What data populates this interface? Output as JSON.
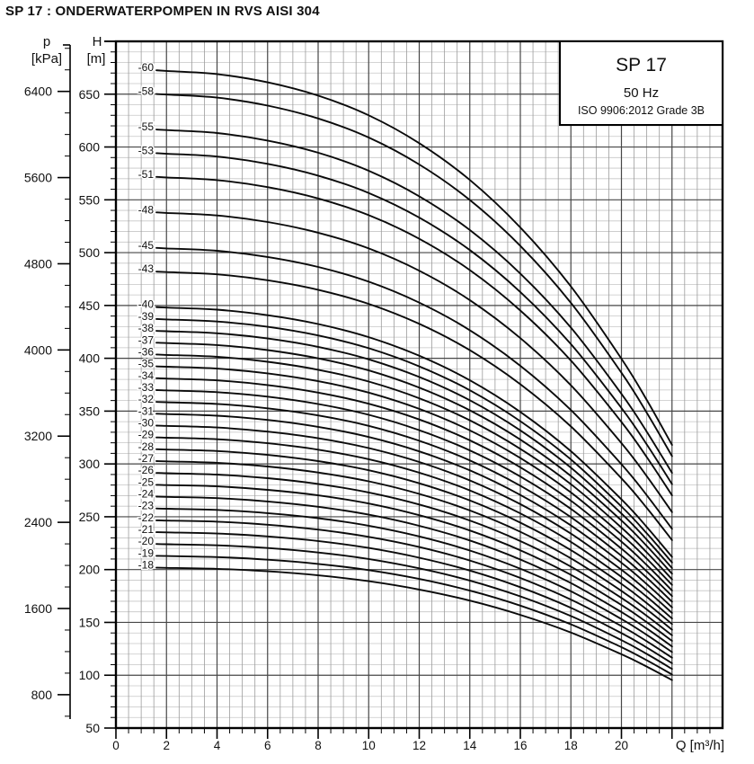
{
  "title": "SP 17 : ONDERWATERPOMPEN IN RVS AISI 304",
  "legend": {
    "model": "SP 17",
    "frequency": "50 Hz",
    "standard": "ISO 9906:2012 Grade 3B"
  },
  "axes": {
    "pressure": {
      "name": "p",
      "unit": "[kPa]",
      "major_ticks": [
        800,
        1600,
        2400,
        3200,
        4000,
        4800,
        5600,
        6400
      ],
      "minor_step": 200,
      "minor_range": [
        600,
        6800
      ],
      "kpa_per_m": 9.80665
    },
    "head": {
      "name": "H",
      "unit": "[m]",
      "major_ticks": [
        50,
        100,
        150,
        200,
        250,
        300,
        350,
        400,
        450,
        500,
        550,
        600,
        650
      ],
      "minor_step": 10,
      "range": [
        50,
        700
      ]
    },
    "flow": {
      "label": "Q [m³/h]",
      "major_ticks": [
        0,
        2,
        4,
        6,
        8,
        10,
        12,
        14,
        16,
        18,
        20
      ],
      "unlabeled_major_ticks": [
        22
      ],
      "minor_step": 0.5,
      "range": [
        0,
        24
      ]
    }
  },
  "chart_data": {
    "type": "line",
    "xlabel": "Q [m³/h]",
    "ylabel": "H [m]",
    "y2label": "p [kPa]",
    "xlim": [
      0,
      24
    ],
    "ylim": [
      50,
      700
    ],
    "grid": true,
    "x": [
      1.6,
      2,
      4,
      6,
      8,
      10,
      12,
      14,
      16,
      18,
      20,
      21,
      22
    ],
    "per_stage_head_m": [
      11.21,
      11.2,
      11.15,
      11.02,
      10.81,
      10.5,
      10.06,
      9.48,
      8.73,
      7.8,
      6.66,
      6.01,
      5.3
    ],
    "head_equals": "stages × per_stage_head_m",
    "series": [
      {
        "label": "-60",
        "stages": 60
      },
      {
        "label": "-58",
        "stages": 58
      },
      {
        "label": "-55",
        "stages": 55
      },
      {
        "label": "-53",
        "stages": 53
      },
      {
        "label": "-51",
        "stages": 51
      },
      {
        "label": "-48",
        "stages": 48
      },
      {
        "label": "-45",
        "stages": 45
      },
      {
        "label": "-43",
        "stages": 43
      },
      {
        "label": "-40",
        "stages": 40
      },
      {
        "label": "-39",
        "stages": 39
      },
      {
        "label": "-38",
        "stages": 38
      },
      {
        "label": "-37",
        "stages": 37
      },
      {
        "label": "-36",
        "stages": 36
      },
      {
        "label": "-35",
        "stages": 35
      },
      {
        "label": "-34",
        "stages": 34
      },
      {
        "label": "-33",
        "stages": 33
      },
      {
        "label": "-32",
        "stages": 32
      },
      {
        "label": "-31",
        "stages": 31
      },
      {
        "label": "-30",
        "stages": 30
      },
      {
        "label": "-29",
        "stages": 29
      },
      {
        "label": "-28",
        "stages": 28
      },
      {
        "label": "-27",
        "stages": 27
      },
      {
        "label": "-26",
        "stages": 26
      },
      {
        "label": "-25",
        "stages": 25
      },
      {
        "label": "-24",
        "stages": 24
      },
      {
        "label": "-23",
        "stages": 23
      },
      {
        "label": "-22",
        "stages": 22
      },
      {
        "label": "-21",
        "stages": 21
      },
      {
        "label": "-20",
        "stages": 20
      },
      {
        "label": "-19",
        "stages": 19
      },
      {
        "label": "-18",
        "stages": 18
      }
    ]
  },
  "colors": {
    "curve": "#0a0a0a",
    "grid_major": "#474747",
    "grid_minor_h": "#c6c6c6",
    "grid_minor_v": "#9c9c9c",
    "border": "#000000",
    "text": "#111111"
  }
}
